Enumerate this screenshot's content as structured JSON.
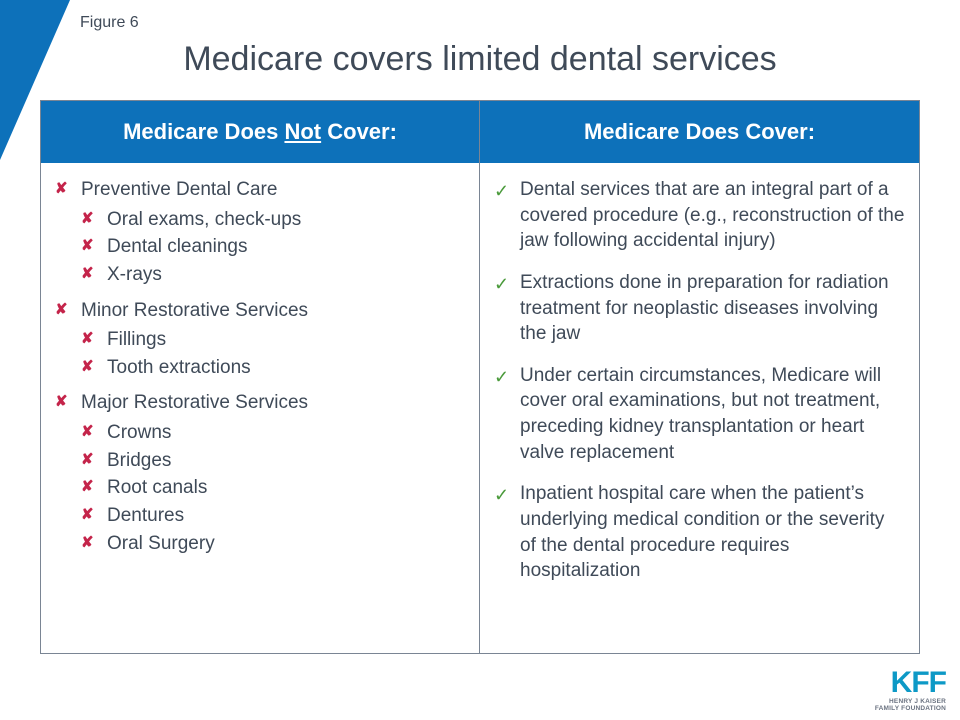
{
  "figure_label": "Figure 6",
  "title": "Medicare covers limited dental services",
  "colors": {
    "brand_blue": "#0d71ba",
    "header_bg": "#0d71ba",
    "text": "#3f4a58",
    "border": "#7a8594",
    "x_color": "#c4244a",
    "check_color": "#4a9a3b",
    "logo_blue": "#0d99c6"
  },
  "headers": {
    "left_pre": "Medicare Does ",
    "left_und": "Not",
    "left_post": " Cover:",
    "right": "Medicare Does Cover:"
  },
  "not_covered": [
    {
      "label": "Preventive Dental Care",
      "sub": [
        "Oral exams, check-ups",
        "Dental cleanings",
        "X-rays"
      ]
    },
    {
      "label": "Minor Restorative Services",
      "sub": [
        "Fillings",
        "Tooth extractions"
      ]
    },
    {
      "label": "Major Restorative Services",
      "sub": [
        "Crowns",
        "Bridges",
        "Root canals",
        "Dentures",
        "Oral Surgery"
      ]
    }
  ],
  "covered": [
    "Dental services that are an integral part of a covered procedure (e.g., reconstruction of the jaw following accidental injury)",
    "Extractions done in preparation for radiation treatment for neoplastic diseases involving the jaw",
    "Under certain circumstances, Medicare will cover oral examinations, but not treatment, preceding kidney transplantation or heart valve replacement",
    "Inpatient hospital care when the patient’s underlying medical condition or the severity of the dental procedure requires hospitalization"
  ],
  "logo": {
    "main": "KFF",
    "sub1": "HENRY J KAISER",
    "sub2": "FAMILY FOUNDATION"
  }
}
